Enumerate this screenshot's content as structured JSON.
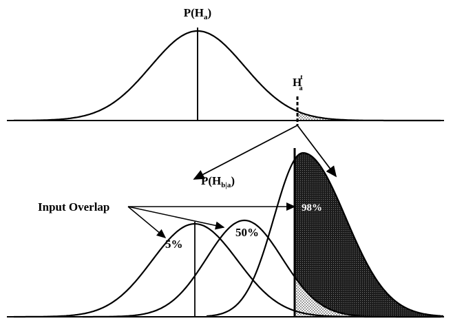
{
  "top_label": {
    "main": "P(H",
    "sub": "a",
    "close": ")"
  },
  "threshold_label": {
    "main": "H",
    "sub": "a",
    "sup": "t"
  },
  "mid_label": {
    "main": "P(H",
    "sub": "b|a",
    "close": ")"
  },
  "overlap_label": "Input Overlap",
  "overlap_values": [
    "5%",
    "50%"
  ],
  "result_label": "98%"
}
